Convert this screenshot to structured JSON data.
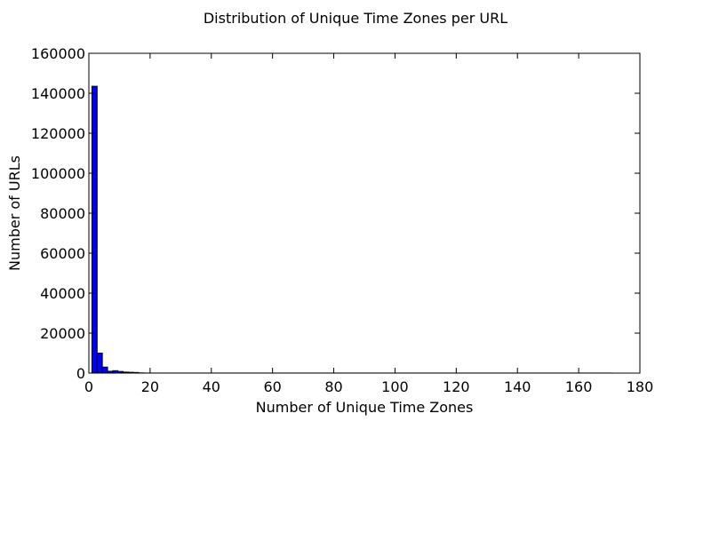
{
  "chart_data": {
    "type": "bar",
    "title": "Distribution of Unique Time Zones per URL",
    "xlabel": "Number of Unique Time Zones",
    "ylabel": "Number of URLs",
    "xlim": [
      0,
      180
    ],
    "ylim": [
      0,
      160000
    ],
    "x_ticks": [
      "0",
      "20",
      "40",
      "60",
      "80",
      "100",
      "120",
      "140",
      "160",
      "180"
    ],
    "y_ticks": [
      "0",
      "20000",
      "40000",
      "60000",
      "80000",
      "100000",
      "120000",
      "140000",
      "160000"
    ],
    "bins": [
      {
        "x0": 1.0,
        "x1": 2.7,
        "value": 143500
      },
      {
        "x0": 2.7,
        "x1": 4.4,
        "value": 10000
      },
      {
        "x0": 4.4,
        "x1": 6.1,
        "value": 3000
      },
      {
        "x0": 6.1,
        "x1": 7.8,
        "value": 900
      },
      {
        "x0": 7.8,
        "x1": 9.5,
        "value": 1200
      },
      {
        "x0": 9.5,
        "x1": 11.2,
        "value": 800
      },
      {
        "x0": 11.2,
        "x1": 12.9,
        "value": 500
      },
      {
        "x0": 12.9,
        "x1": 14.6,
        "value": 400
      },
      {
        "x0": 14.6,
        "x1": 16.3,
        "value": 300
      },
      {
        "x0": 16.3,
        "x1": 18.0,
        "value": 100
      },
      {
        "x0": 18.0,
        "x1": 171.0,
        "value": 30
      }
    ],
    "bar_color": "#0000ff",
    "grid": false,
    "legend": false
  }
}
